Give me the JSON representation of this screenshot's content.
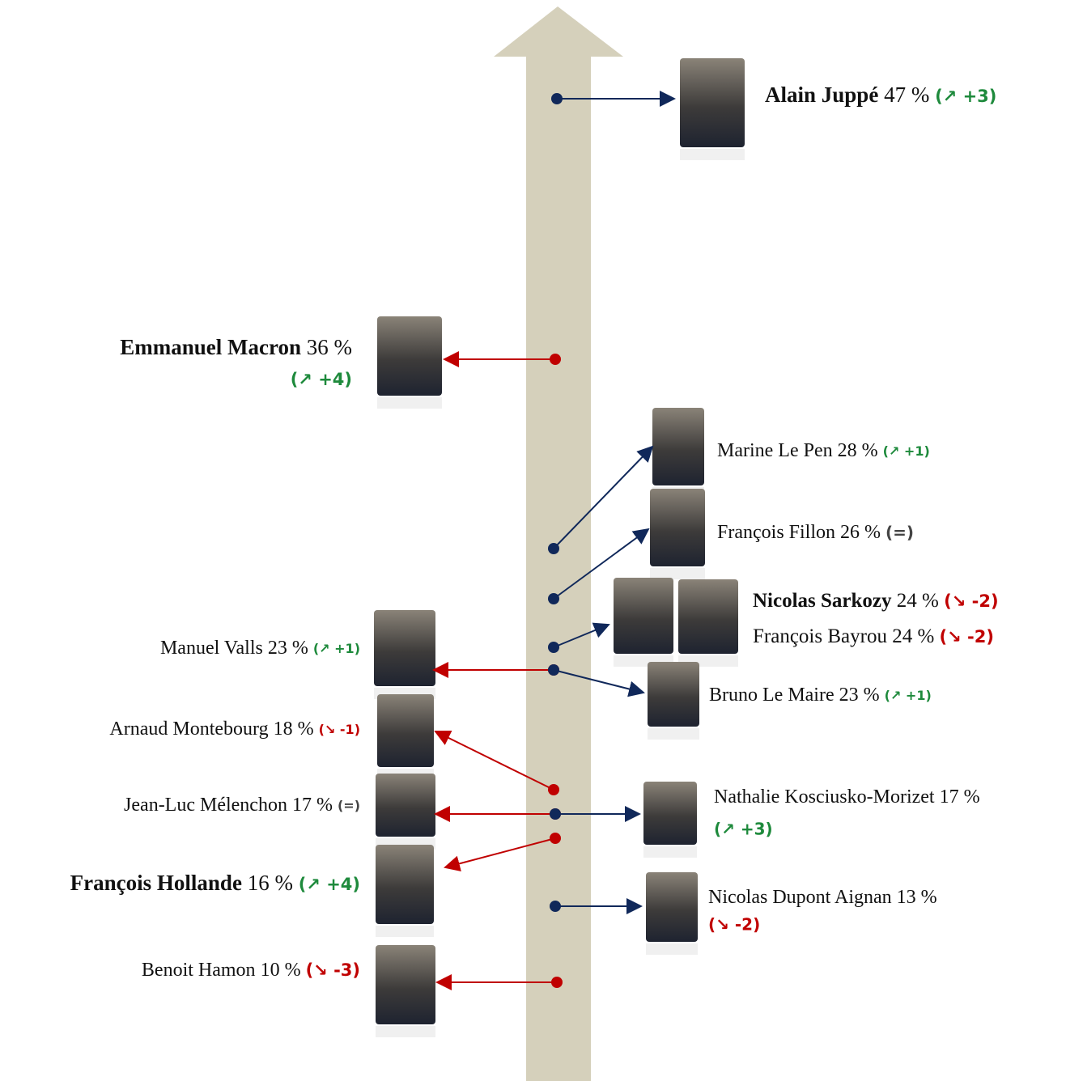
{
  "items": [
    {
      "name": "Alain Juppé",
      "score": "47 %",
      "change": "(↗ +3)"
    },
    {
      "name": "Emmanuel Macron",
      "score": "36 %",
      "change": "(↗ +4)"
    },
    {
      "name": "Marine Le Pen",
      "score": "28 %",
      "change": "(↗ +1)"
    },
    {
      "name": "François Fillon",
      "score": "26 %",
      "change": "(=)"
    },
    {
      "name": "Nicolas Sarkozy",
      "score": "24 %",
      "change": "(↘ -2)"
    },
    {
      "name": "François Bayrou",
      "score": "24 %",
      "change": "(↘ -2)"
    },
    {
      "name": "Manuel Valls",
      "score": "23 %",
      "change": "(↗ +1)"
    },
    {
      "name": "Bruno Le Maire",
      "score": "23 %",
      "change": "(↗ +1)"
    },
    {
      "name": "Arnaud Montebourg",
      "score": "18 %",
      "change": "(↘ -1)"
    },
    {
      "name": "Jean-Luc Mélenchon",
      "score": "17 %",
      "change": "(=)"
    },
    {
      "name": "Nathalie Kosciusko-Morizet",
      "score": "17 %",
      "change": "(↗ +3)"
    },
    {
      "name": "François Hollande",
      "score": "16 %",
      "change": "(↗ +4)"
    },
    {
      "name": "Nicolas Dupont Aignan",
      "score": "13 %",
      "change": "(↘ -2)"
    },
    {
      "name": "Benoit Hamon",
      "score": "10 %",
      "change": "(↘ -3)"
    }
  ]
}
